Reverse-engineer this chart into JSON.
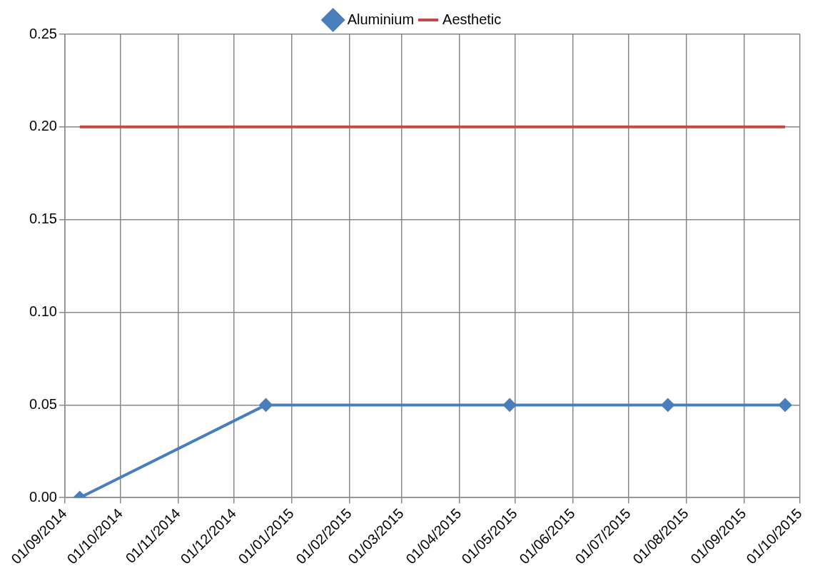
{
  "chart_data": {
    "type": "line",
    "legend": "top",
    "grid": true,
    "xlim": [
      "2014-09-01",
      "2015-10-01"
    ],
    "xticks": [
      {
        "value": "2014-09-01",
        "label": "01/09/2014"
      },
      {
        "value": "2014-10-01",
        "label": "01/10/2014"
      },
      {
        "value": "2014-11-01",
        "label": "01/11/2014"
      },
      {
        "value": "2014-12-01",
        "label": "01/12/2014"
      },
      {
        "value": "2015-01-01",
        "label": "01/01/2015"
      },
      {
        "value": "2015-02-01",
        "label": "01/02/2015"
      },
      {
        "value": "2015-03-01",
        "label": "01/03/2015"
      },
      {
        "value": "2015-04-01",
        "label": "01/04/2015"
      },
      {
        "value": "2015-05-01",
        "label": "01/05/2015"
      },
      {
        "value": "2015-06-01",
        "label": "01/06/2015"
      },
      {
        "value": "2015-07-01",
        "label": "01/07/2015"
      },
      {
        "value": "2015-08-01",
        "label": "01/08/2015"
      },
      {
        "value": "2015-09-01",
        "label": "01/09/2015"
      },
      {
        "value": "2015-10-01",
        "label": "01/10/2015"
      }
    ],
    "ylim": [
      0,
      0.25
    ],
    "yticks": [
      {
        "value": 0,
        "label": "0.00"
      },
      {
        "value": 0.05,
        "label": "0.05"
      },
      {
        "value": 0.1,
        "label": "0.10"
      },
      {
        "value": 0.15,
        "label": "0.15"
      },
      {
        "value": 0.2,
        "label": "0.20"
      },
      {
        "value": 0.25,
        "label": "0.25"
      }
    ],
    "series": [
      {
        "name": "Aluminium",
        "color": "#4a7ebb",
        "marker": "diamond",
        "x": [
          "2014-09-09",
          "2014-12-18",
          "2015-04-28",
          "2015-07-22",
          "2015-09-23"
        ],
        "values": [
          0,
          0.05,
          0.05,
          0.05,
          0.05
        ]
      },
      {
        "name": "Aesthetic",
        "color": "#be4b48",
        "marker": "none",
        "x": [
          "2014-09-09",
          "2015-09-23"
        ],
        "values": [
          0.2,
          0.2
        ]
      }
    ]
  }
}
